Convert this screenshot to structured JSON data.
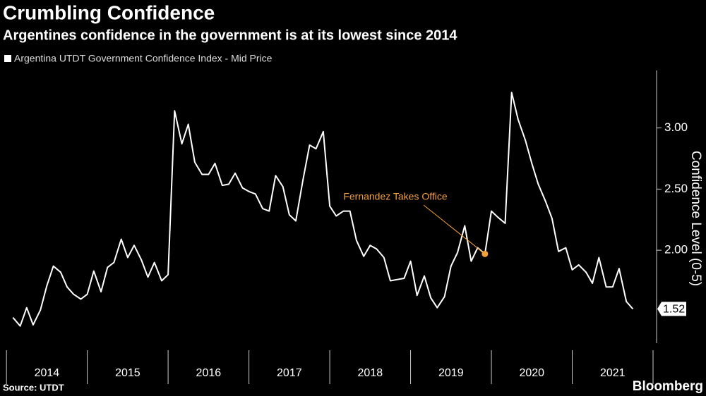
{
  "chart_data": {
    "type": "line",
    "title": "Crumbling Confidence",
    "subtitle": "Argentines confidence in the government is at its lowest since 2014",
    "y_label": "Confidence Level (0-5)",
    "source": "Source: UTDT",
    "brand": "Bloomberg",
    "x": [
      2014.08,
      2014.17,
      2014.25,
      2014.33,
      2014.42,
      2014.5,
      2014.58,
      2014.67,
      2014.75,
      2014.83,
      2014.92,
      2015.0,
      2015.08,
      2015.17,
      2015.25,
      2015.33,
      2015.42,
      2015.5,
      2015.58,
      2015.67,
      2015.75,
      2015.83,
      2015.92,
      2016.0,
      2016.08,
      2016.17,
      2016.25,
      2016.33,
      2016.42,
      2016.5,
      2016.58,
      2016.67,
      2016.75,
      2016.83,
      2016.92,
      2017.0,
      2017.08,
      2017.17,
      2017.25,
      2017.33,
      2017.42,
      2017.5,
      2017.58,
      2017.67,
      2017.75,
      2017.83,
      2017.92,
      2018.0,
      2018.08,
      2018.17,
      2018.25,
      2018.33,
      2018.42,
      2018.5,
      2018.58,
      2018.67,
      2018.75,
      2018.83,
      2018.92,
      2019.0,
      2019.08,
      2019.17,
      2019.25,
      2019.33,
      2019.42,
      2019.5,
      2019.58,
      2019.67,
      2019.75,
      2019.83,
      2019.92,
      2020.0,
      2020.08,
      2020.17,
      2020.25,
      2020.33,
      2020.42,
      2020.5,
      2020.58,
      2020.67,
      2020.75,
      2020.83,
      2020.92,
      2021.0,
      2021.08,
      2021.17,
      2021.25,
      2021.33,
      2021.42,
      2021.5,
      2021.58,
      2021.67,
      2021.75
    ],
    "series": [
      {
        "name": "Argentina UTDT Government Confidence Index - Mid Price",
        "color": "#ffffff",
        "values": [
          1.45,
          1.38,
          1.53,
          1.39,
          1.51,
          1.71,
          1.87,
          1.82,
          1.7,
          1.64,
          1.6,
          1.64,
          1.83,
          1.66,
          1.86,
          1.9,
          2.09,
          1.94,
          2.04,
          1.92,
          1.78,
          1.9,
          1.75,
          1.8,
          3.14,
          2.87,
          3.03,
          2.72,
          2.62,
          2.62,
          2.71,
          2.53,
          2.54,
          2.63,
          2.51,
          2.48,
          2.46,
          2.34,
          2.32,
          2.61,
          2.52,
          2.29,
          2.24,
          2.58,
          2.86,
          2.83,
          2.97,
          2.36,
          2.28,
          2.32,
          2.32,
          2.08,
          1.95,
          2.04,
          2.01,
          1.94,
          1.75,
          1.76,
          1.77,
          1.91,
          1.63,
          1.79,
          1.61,
          1.53,
          1.62,
          1.87,
          1.98,
          2.2,
          1.91,
          2.02,
          1.97,
          2.32,
          2.27,
          2.22,
          3.29,
          3.07,
          2.9,
          2.71,
          2.54,
          2.4,
          2.26,
          1.99,
          2.02,
          1.84,
          1.88,
          1.82,
          1.73,
          1.94,
          1.7,
          1.7,
          1.85,
          1.58,
          1.52
        ]
      }
    ],
    "annotation": {
      "text": "Fernandez Takes Office",
      "x": 2019.92,
      "color": "#f4a03a"
    },
    "xlim": [
      2013.92,
      2022.0
    ],
    "xticks": [
      {
        "value": 2014.5,
        "label": "2014"
      },
      {
        "value": 2015.5,
        "label": "2015"
      },
      {
        "value": 2016.5,
        "label": "2016"
      },
      {
        "value": 2017.5,
        "label": "2017"
      },
      {
        "value": 2018.5,
        "label": "2018"
      },
      {
        "value": 2019.5,
        "label": "2019"
      },
      {
        "value": 2020.5,
        "label": "2020"
      },
      {
        "value": 2021.5,
        "label": "2021"
      }
    ],
    "ylim": [
      1.24,
      3.47
    ],
    "yticks": [
      {
        "value": 2,
        "label": "2.00"
      },
      {
        "value": 2.5,
        "label": "2.50"
      },
      {
        "value": 3,
        "label": "3.00"
      }
    ],
    "grid": false
  }
}
